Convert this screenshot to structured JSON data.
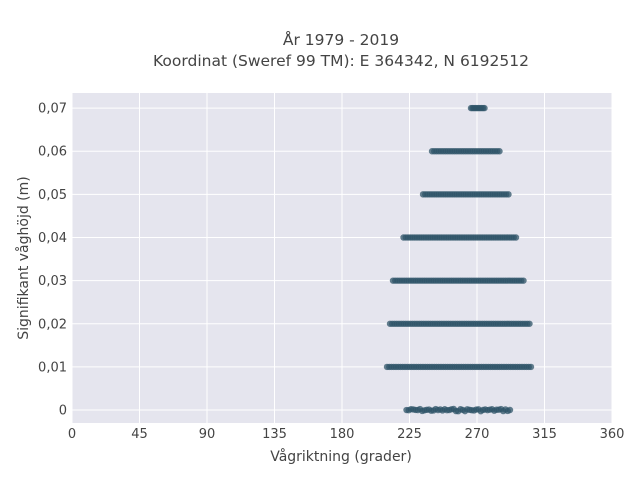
{
  "chart_data": {
    "type": "scatter",
    "title_line1": "År 1979 - 2019",
    "title_line2": "Koordinat (Sweref 99 TM): E 364342, N 6192512",
    "xlabel": "Vågriktning (grader)",
    "ylabel": "Signifikant våghöjd (m)",
    "xlim": [
      0,
      360
    ],
    "ylim": [
      -0.003,
      0.0735
    ],
    "x_ticks": [
      0,
      45,
      90,
      135,
      180,
      225,
      270,
      315,
      360
    ],
    "x_tick_labels": [
      "0",
      "45",
      "90",
      "135",
      "180",
      "225",
      "270",
      "315",
      "360"
    ],
    "y_ticks": [
      0,
      0.01,
      0.02,
      0.03,
      0.04,
      0.05,
      0.06,
      0.07
    ],
    "y_tick_labels": [
      "0",
      "0,01",
      "0,02",
      "0,03",
      "0,04",
      "0,05",
      "0,06",
      "0,07"
    ],
    "grid": true,
    "background_color": "#e5e5ee",
    "marker_color": "#2f5468",
    "series": [
      {
        "bands": [
          {
            "y": 0.0,
            "x_min": 223,
            "x_max": 292
          },
          {
            "y": 0.01,
            "x_min": 210,
            "x_max": 306
          },
          {
            "y": 0.02,
            "x_min": 212,
            "x_max": 305
          },
          {
            "y": 0.03,
            "x_min": 214,
            "x_max": 301
          },
          {
            "y": 0.04,
            "x_min": 221,
            "x_max": 296
          },
          {
            "y": 0.05,
            "x_min": 234,
            "x_max": 292
          },
          {
            "y": 0.06,
            "x_min": 240,
            "x_max": 285
          },
          {
            "y": 0.07,
            "x_min": 266,
            "x_max": 275
          }
        ]
      }
    ]
  }
}
